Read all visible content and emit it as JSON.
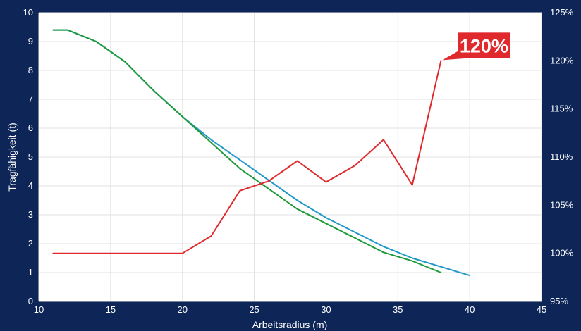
{
  "chart_data": {
    "type": "line",
    "xlabel": "Arbeitsradius (m)",
    "ylabel": "Tragfähigkeit (t)",
    "xlim": [
      10,
      45
    ],
    "x_ticks": [
      "10",
      "15",
      "20",
      "25",
      "30",
      "35",
      "40",
      "45"
    ],
    "ylim": [
      0,
      10
    ],
    "y_ticks": [
      "0",
      "1",
      "2",
      "3",
      "4",
      "5",
      "6",
      "7",
      "8",
      "9",
      "10"
    ],
    "y2lim": [
      95,
      125
    ],
    "y2_ticks": [
      "95%",
      "100%",
      "105%",
      "110%",
      "115%",
      "120%",
      "125%"
    ],
    "grid": true,
    "series": [
      {
        "axis": "left",
        "color": "#1f97c9",
        "x": [
          11,
          12,
          14,
          16,
          18,
          20,
          22,
          24,
          26,
          28,
          30,
          32,
          34,
          36,
          38,
          40
        ],
        "values": [
          9.4,
          9.4,
          9.0,
          8.3,
          7.3,
          6.4,
          5.6,
          4.9,
          4.2,
          3.5,
          2.9,
          2.4,
          1.9,
          1.5,
          1.2,
          0.9
        ]
      },
      {
        "axis": "left",
        "color": "#1f9a3a",
        "x": [
          11,
          12,
          14,
          16,
          18,
          20,
          22,
          24,
          26,
          28,
          30,
          32,
          34,
          36,
          38
        ],
        "values": [
          9.4,
          9.4,
          9.0,
          8.3,
          7.3,
          6.4,
          5.5,
          4.6,
          3.9,
          3.2,
          2.7,
          2.2,
          1.7,
          1.4,
          1.0
        ]
      },
      {
        "axis": "right",
        "color": "#e0292d",
        "x": [
          11,
          12,
          14,
          16,
          18,
          20,
          22,
          24,
          26,
          28,
          30,
          32,
          34,
          36,
          38
        ],
        "values": [
          100,
          100,
          100,
          100,
          100,
          100,
          101.8,
          106.5,
          107.5,
          109.6,
          107.4,
          109.1,
          111.8,
          107.1,
          120
        ]
      }
    ],
    "annotation": {
      "text": "120%",
      "x": 38,
      "value": 120,
      "axis": "right",
      "color": "#e0292d"
    }
  }
}
